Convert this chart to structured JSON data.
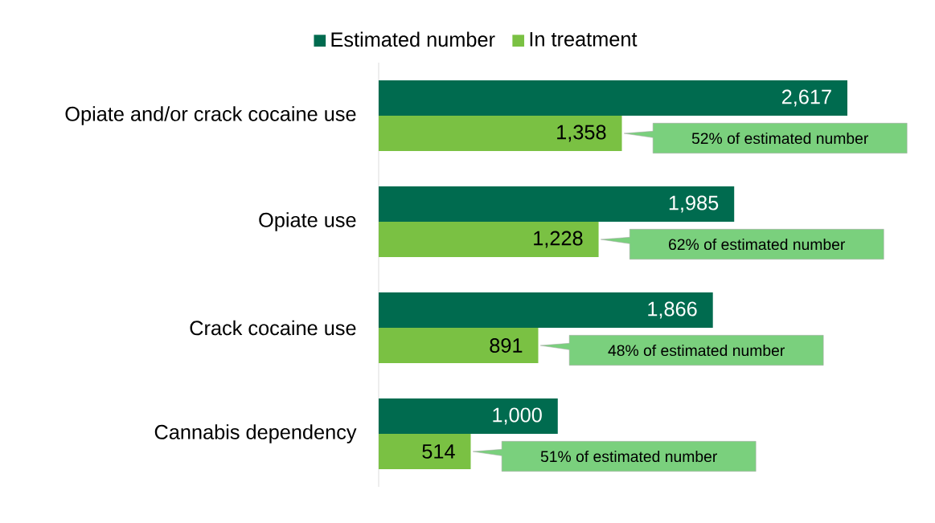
{
  "chart_data": {
    "type": "bar",
    "orientation": "horizontal",
    "categories": [
      "Opiate and/or crack cocaine use",
      "Opiate use",
      "Crack cocaine use",
      "Cannabis dependency"
    ],
    "series": [
      {
        "name": "Estimated number",
        "color": "#006b4f",
        "values": [
          2617,
          1985,
          1866,
          1000
        ],
        "value_labels": [
          "2,617",
          "1,985",
          "1,866",
          "1,000"
        ]
      },
      {
        "name": "In treatment",
        "color": "#7ac143",
        "values": [
          1358,
          1228,
          891,
          514
        ],
        "value_labels": [
          "1,358",
          "1,228",
          "891",
          "514"
        ]
      }
    ],
    "tick_labels": "y",
    "legend": "top",
    "annotations": [
      "52% of estimated number",
      "62% of estimated number",
      "48% of estimated number",
      "51% of estimated number"
    ]
  }
}
